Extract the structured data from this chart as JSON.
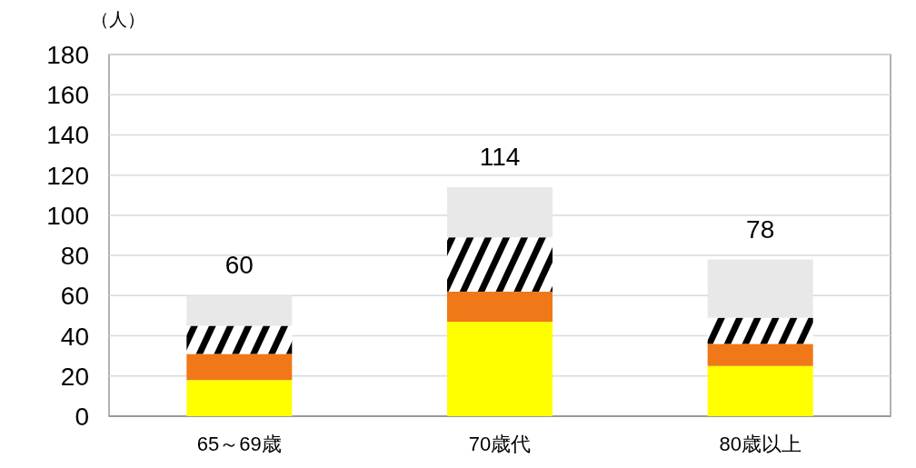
{
  "chart_data": {
    "type": "bar",
    "stacked": true,
    "ylabel": "（人）",
    "categories": [
      "65～69歳",
      "70歳代",
      "80歳以上"
    ],
    "series": [
      {
        "color": "#ffff00",
        "values": [
          18,
          47,
          25
        ]
      },
      {
        "color": "#f07818",
        "values": [
          13,
          15,
          11
        ]
      },
      {
        "color": "#000000",
        "values": [
          14,
          27,
          13
        ]
      },
      {
        "color": "#e8e8e8",
        "values": [
          15,
          25,
          29
        ]
      }
    ],
    "totals": [
      "60",
      "114",
      "78"
    ],
    "ylim": [
      0,
      180
    ],
    "yticks": [
      0,
      20,
      40,
      60,
      80,
      100,
      120,
      140,
      160,
      180
    ],
    "grid": "y"
  }
}
